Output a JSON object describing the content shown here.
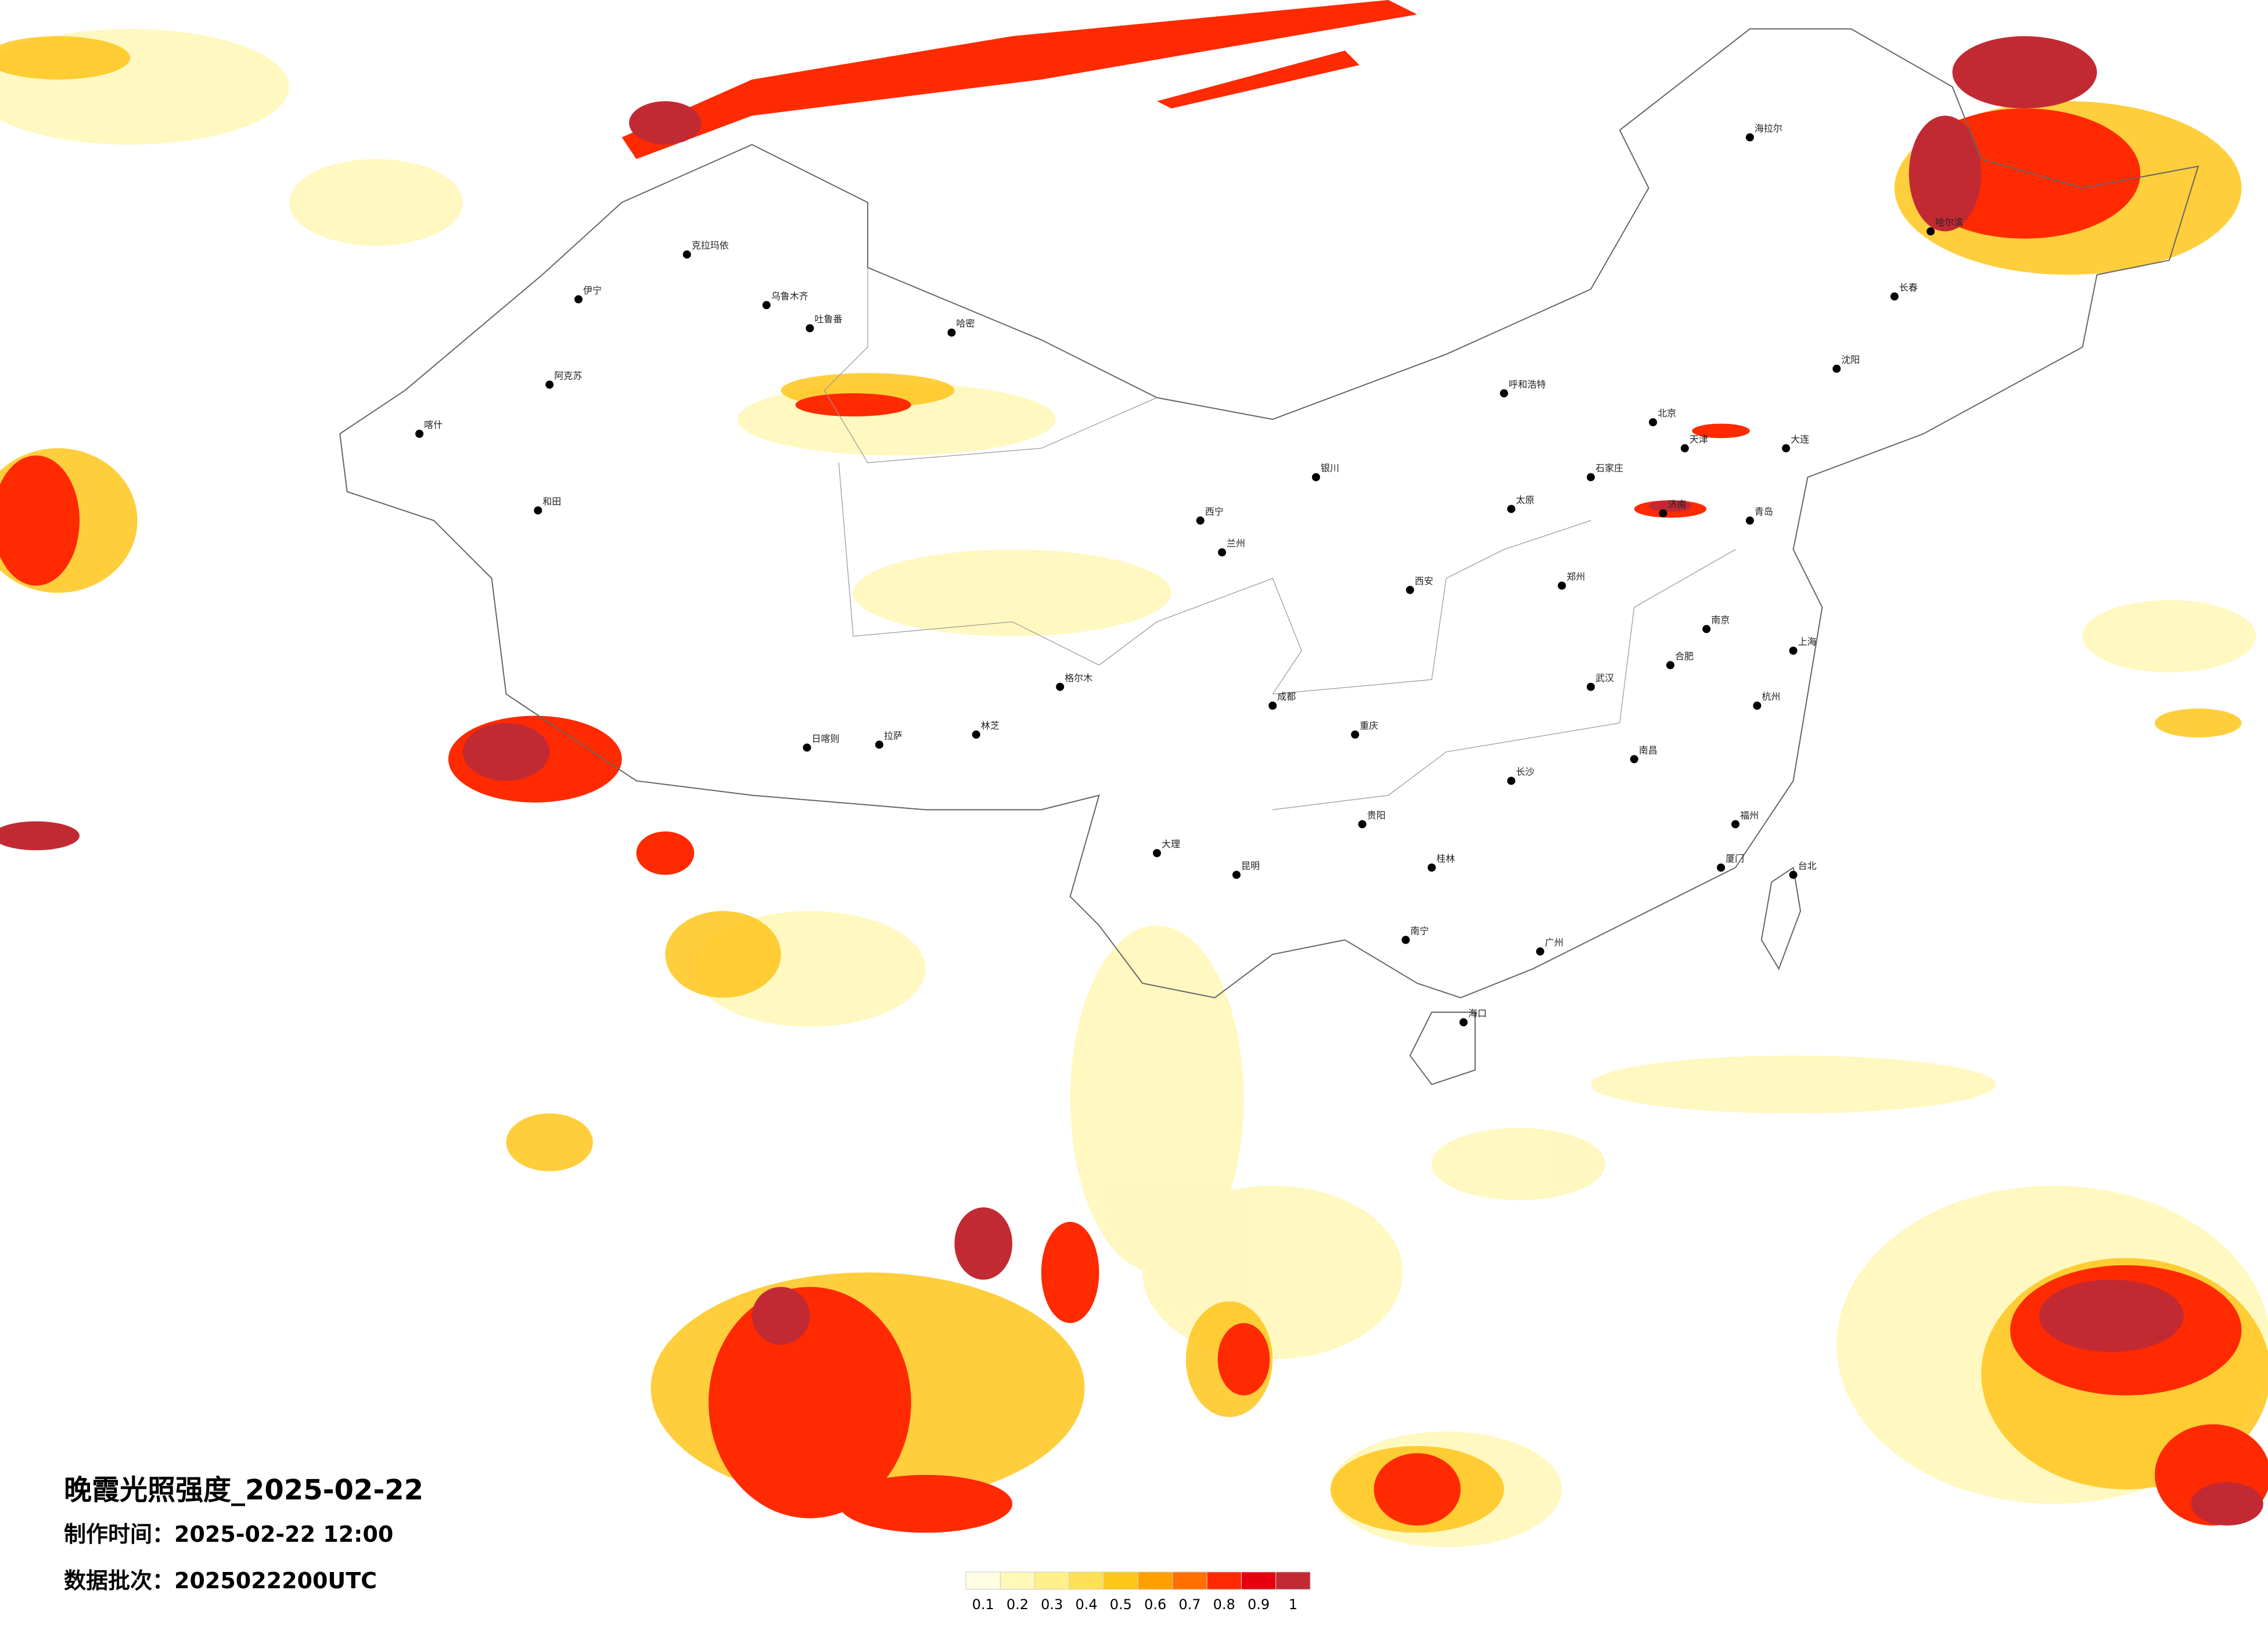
{
  "map": {
    "title": "晚霞光照强度_2025-02-22",
    "production_time": "制作时间：2025-02-22 12:00",
    "data_batch": "数据批次：2025022200UTC",
    "colorbar": {
      "labels": [
        "0.1",
        "0.2",
        "0.3",
        "0.4",
        "0.5",
        "0.6",
        "0.7",
        "0.8",
        "0.9",
        "1"
      ],
      "colors": [
        "#fffde3",
        "#fff8b8",
        "#fff08a",
        "#ffdf55",
        "#ffc61a",
        "#ffa000",
        "#ff7000",
        "#ff2a00",
        "#e8000f",
        "#c22a33"
      ]
    },
    "cities": [
      "乌鲁木齐",
      "克拉玛依",
      "伊宁",
      "阿克苏",
      "喀什",
      "和田",
      "哈密",
      "吐鲁番",
      "拉萨",
      "日喀则",
      "格尔木",
      "西宁",
      "兰州",
      "银川",
      "呼和浩特",
      "北京",
      "天津",
      "石家庄",
      "太原",
      "济南",
      "郑州",
      "西安",
      "成都",
      "重庆",
      "贵阳",
      "昆明",
      "南宁",
      "广州",
      "海口",
      "长沙",
      "武汉",
      "南昌",
      "合肥",
      "南京",
      "上海",
      "杭州",
      "福州",
      "台北",
      "沈阳",
      "长春",
      "哈尔滨",
      "海拉尔",
      "大连",
      "青岛",
      "厦门",
      "林芝",
      "大理",
      "桂林"
    ]
  }
}
